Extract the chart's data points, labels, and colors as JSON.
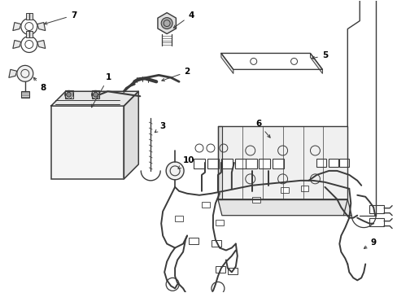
{
  "background_color": "#ffffff",
  "line_color": "#3a3a3a",
  "label_color": "#000000",
  "figsize": [
    4.89,
    3.6
  ],
  "dpi": 100
}
